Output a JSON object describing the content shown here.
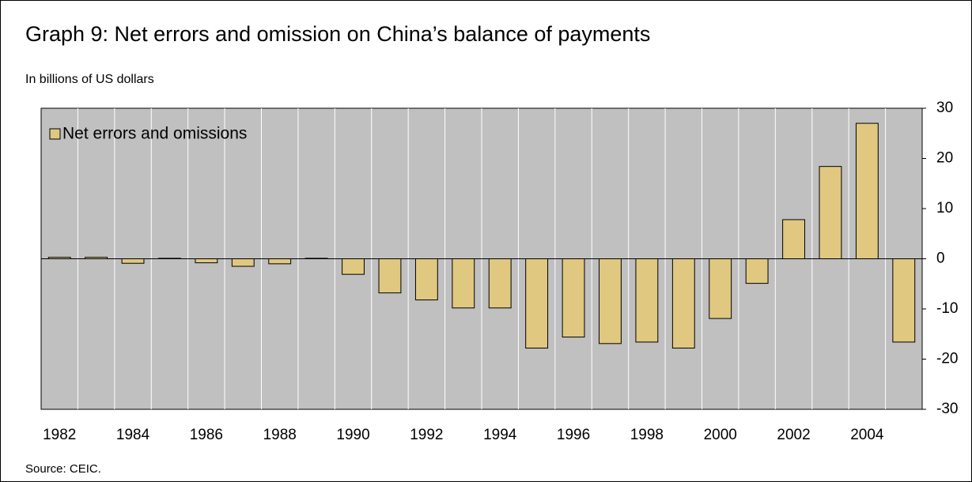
{
  "chart_data": {
    "type": "bar",
    "title": "Graph 9: Net errors and omission on China’s balance of payments",
    "subtitle": "In billions of US dollars",
    "source": "Source: CEIC.",
    "categories": [
      "1982",
      null,
      "1984",
      null,
      "1986",
      null,
      "1988",
      null,
      "1990",
      null,
      "1992",
      null,
      "1994",
      null,
      "1996",
      null,
      "1998",
      null,
      "2000",
      null,
      "2002",
      null,
      "2004",
      null
    ],
    "series": [
      {
        "name": "Net errors and omissions",
        "color": "#e0c880",
        "values": [
          0.3,
          0.3,
          -0.9,
          0.1,
          -0.8,
          -1.5,
          -1.0,
          0.1,
          -3.1,
          -6.8,
          -8.2,
          -9.8,
          -9.8,
          -17.8,
          -15.6,
          -16.9,
          -16.6,
          -17.8,
          -11.9,
          -4.9,
          7.8,
          18.4,
          27.0,
          -16.6
        ]
      }
    ],
    "ylim": [
      -30,
      30
    ],
    "yticks": [
      -30,
      -20,
      -10,
      0,
      10,
      20,
      30
    ],
    "y_axis_side": "right",
    "legend": "top-left",
    "background": "#c0c0c0"
  }
}
